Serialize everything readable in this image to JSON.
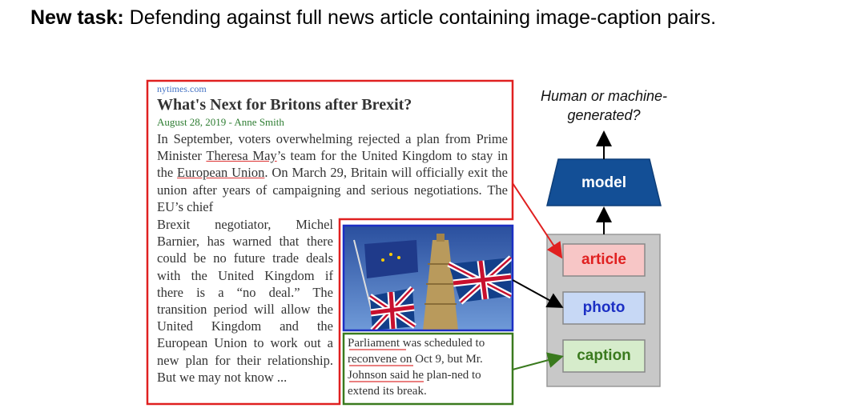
{
  "header": {
    "bold": "New task:",
    "text": " Defending against full news article containing image-caption pairs."
  },
  "article": {
    "source": "nytimes.com",
    "title": "What's Next for Britons after Brexit?",
    "byline": "August 28, 2019 - Anne Smith",
    "para_top_1": "In September, voters overwhelming rejected a plan from Prime Minister ",
    "para_top_name": "Theresa May",
    "para_top_2": "’s team for the United Kingdom to stay in the ",
    "para_top_eu": "European Union",
    "para_top_3": ". On March 29, Britain will officially exit the union after years of campaigning and serious negotiations. The EU’s chief",
    "para_left": "Brexit negotiator, Michel Barnier, has warned that there could be no future trade deals with the United Kingdom if there is a “no deal.” The transition period will allow the United Kingdom and the European Union to work out a new plan for their relationship. But we may not know ..."
  },
  "caption": {
    "word1": "Parliament",
    "part1": " was scheduled ",
    "word2": "to reconvene",
    "part2": " on Oct 9, but ",
    "word3": "Mr. Johnson",
    "part3": " said he plan-ned to extend its break."
  },
  "diagram": {
    "question": "Human or machine-generated?",
    "model_label": "model",
    "article_label": "article",
    "photo_label": "photo",
    "caption_label": "caption"
  },
  "colors": {
    "red": "#e02020",
    "blue": "#1c2fc4",
    "green": "#3a7a1e",
    "model": "#134f96",
    "panel": "#c8c8c8"
  }
}
